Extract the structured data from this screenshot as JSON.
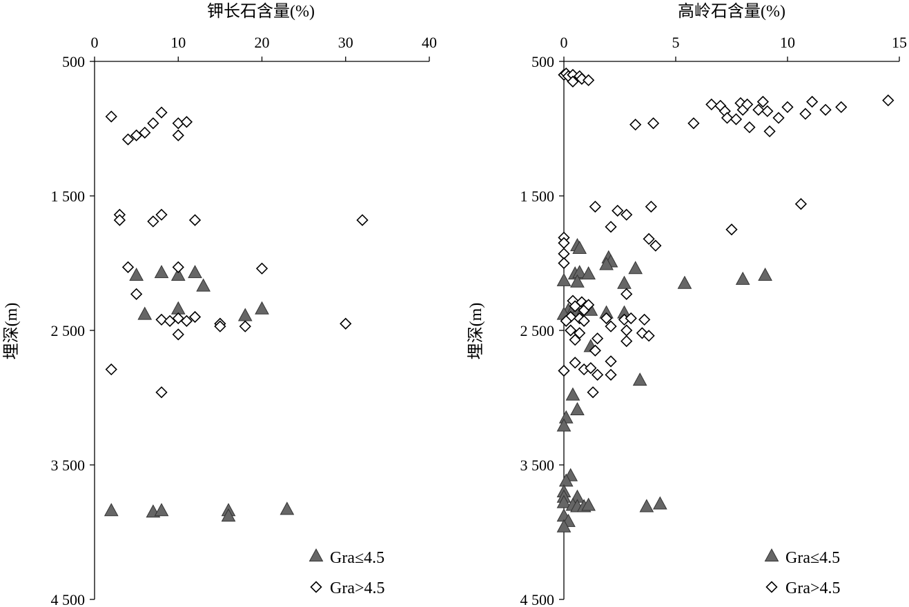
{
  "chart_data": [
    {
      "type": "scatter",
      "title": "",
      "xlabel": "钾长石含量(%)",
      "ylabel": "埋深(m)",
      "xlim": [
        0,
        40
      ],
      "ylim": [
        500,
        4500
      ],
      "y_inverted": true,
      "x_axis_position": "top",
      "xticks": [
        "0",
        "10",
        "20",
        "30",
        "40"
      ],
      "yticks": [
        "500",
        "1 500",
        "2 500",
        "3 500",
        "4 500"
      ],
      "legend": [
        "Gra≤4.5",
        "Gra>4.5"
      ],
      "legend_position": "bottom-right",
      "series": [
        {
          "name": "Gra≤4.5",
          "marker": "triangle",
          "color": "#666666",
          "points": [
            [
              5,
              2090
            ],
            [
              8,
              2070
            ],
            [
              10,
              2090
            ],
            [
              12,
              2070
            ],
            [
              13,
              2170
            ],
            [
              10,
              2340
            ],
            [
              6,
              2380
            ],
            [
              18,
              2390
            ],
            [
              20,
              2340
            ],
            [
              2,
              3840
            ],
            [
              7,
              3850
            ],
            [
              8,
              3840
            ],
            [
              16,
              3840
            ],
            [
              16,
              3880
            ],
            [
              23,
              3830
            ]
          ]
        },
        {
          "name": "Gra>4.5",
          "marker": "diamond",
          "color": "#ffffff",
          "points": [
            [
              2,
              910
            ],
            [
              8,
              880
            ],
            [
              7,
              960
            ],
            [
              10,
              960
            ],
            [
              11,
              950
            ],
            [
              4,
              1080
            ],
            [
              5,
              1050
            ],
            [
              6,
              1030
            ],
            [
              10,
              1050
            ],
            [
              3,
              1640
            ],
            [
              3,
              1680
            ],
            [
              8,
              1640
            ],
            [
              7,
              1690
            ],
            [
              12,
              1680
            ],
            [
              32,
              1680
            ],
            [
              4,
              2030
            ],
            [
              10,
              2030
            ],
            [
              20,
              2040
            ],
            [
              5,
              2230
            ],
            [
              8,
              2420
            ],
            [
              9,
              2430
            ],
            [
              10,
              2410
            ],
            [
              11,
              2430
            ],
            [
              12,
              2400
            ],
            [
              15,
              2450
            ],
            [
              15,
              2470
            ],
            [
              18,
              2470
            ],
            [
              30,
              2450
            ],
            [
              10,
              2530
            ],
            [
              2,
              2790
            ],
            [
              8,
              2960
            ]
          ]
        }
      ]
    },
    {
      "type": "scatter",
      "title": "",
      "xlabel": "高岭石含量(%)",
      "ylabel": "埋深(m)",
      "xlim": [
        0,
        15
      ],
      "ylim": [
        500,
        4500
      ],
      "y_inverted": true,
      "x_axis_position": "top",
      "xticks": [
        "0",
        "5",
        "10",
        "15"
      ],
      "yticks": [
        "500",
        "1 500",
        "2 500",
        "3 500",
        "4 500"
      ],
      "legend": [
        "Gra≤4.5",
        "Gra>4.5"
      ],
      "legend_position": "bottom-right",
      "series": [
        {
          "name": "Gra≤4.5",
          "marker": "triangle",
          "color": "#666666",
          "points": [
            [
              0.6,
              1870
            ],
            [
              0.7,
              1890
            ],
            [
              2.0,
              1960
            ],
            [
              2.1,
              1990
            ],
            [
              1.9,
              2010
            ],
            [
              3.2,
              2040
            ],
            [
              0.5,
              2080
            ],
            [
              0.7,
              2070
            ],
            [
              1.1,
              2080
            ],
            [
              0.0,
              2130
            ],
            [
              0.6,
              2140
            ],
            [
              2.7,
              2150
            ],
            [
              5.4,
              2150
            ],
            [
              8.0,
              2120
            ],
            [
              9.0,
              2090
            ],
            [
              0.2,
              2350
            ],
            [
              0.4,
              2350
            ],
            [
              0.6,
              2360
            ],
            [
              0.9,
              2340
            ],
            [
              1.2,
              2350
            ],
            [
              1.9,
              2370
            ],
            [
              2.7,
              2370
            ],
            [
              0.0,
              2380
            ],
            [
              1.2,
              2620
            ],
            [
              3.4,
              2870
            ],
            [
              0.4,
              2980
            ],
            [
              0.6,
              3090
            ],
            [
              0.1,
              3150
            ],
            [
              0.0,
              3210
            ],
            [
              0.3,
              3580
            ],
            [
              0.1,
              3620
            ],
            [
              0.0,
              3700
            ],
            [
              0.0,
              3740
            ],
            [
              0.6,
              3740
            ],
            [
              0.0,
              3780
            ],
            [
              0.4,
              3800
            ],
            [
              0.6,
              3810
            ],
            [
              0.9,
              3810
            ],
            [
              1.1,
              3800
            ],
            [
              3.7,
              3810
            ],
            [
              4.3,
              3790
            ],
            [
              0.0,
              3880
            ],
            [
              0.2,
              3920
            ],
            [
              0.0,
              3960
            ]
          ]
        },
        {
          "name": "Gra>4.5",
          "marker": "diamond",
          "color": "#ffffff",
          "points": [
            [
              0.0,
              600
            ],
            [
              0.1,
              590
            ],
            [
              0.2,
              610
            ],
            [
              0.4,
              600
            ],
            [
              0.7,
              610
            ],
            [
              0.4,
              650
            ],
            [
              0.8,
              630
            ],
            [
              1.1,
              640
            ],
            [
              6.6,
              820
            ],
            [
              7.0,
              830
            ],
            [
              7.2,
              870
            ],
            [
              7.3,
              920
            ],
            [
              7.7,
              930
            ],
            [
              7.9,
              810
            ],
            [
              8.0,
              860
            ],
            [
              8.2,
              820
            ],
            [
              8.7,
              860
            ],
            [
              8.9,
              800
            ],
            [
              9.1,
              870
            ],
            [
              9.6,
              920
            ],
            [
              10.0,
              840
            ],
            [
              10.8,
              890
            ],
            [
              11.1,
              800
            ],
            [
              11.7,
              860
            ],
            [
              12.4,
              840
            ],
            [
              14.5,
              790
            ],
            [
              8.3,
              990
            ],
            [
              9.2,
              1020
            ],
            [
              3.2,
              970
            ],
            [
              4.0,
              960
            ],
            [
              5.8,
              960
            ],
            [
              1.4,
              1580
            ],
            [
              2.4,
              1610
            ],
            [
              2.8,
              1640
            ],
            [
              3.9,
              1580
            ],
            [
              10.6,
              1560
            ],
            [
              2.1,
              1730
            ],
            [
              7.5,
              1750
            ],
            [
              0.0,
              1810
            ],
            [
              0.0,
              1850
            ],
            [
              3.8,
              1820
            ],
            [
              4.1,
              1870
            ],
            [
              0.0,
              1930
            ],
            [
              0.0,
              2000
            ],
            [
              2.8,
              2230
            ],
            [
              0.4,
              2280
            ],
            [
              0.8,
              2290
            ],
            [
              0.5,
              2320
            ],
            [
              1.0,
              2320
            ],
            [
              0.9,
              2350
            ],
            [
              1.1,
              2310
            ],
            [
              0.3,
              2400
            ],
            [
              0.1,
              2430
            ],
            [
              0.7,
              2410
            ],
            [
              0.9,
              2430
            ],
            [
              1.9,
              2410
            ],
            [
              2.7,
              2420
            ],
            [
              3.0,
              2410
            ],
            [
              3.6,
              2420
            ],
            [
              0.3,
              2500
            ],
            [
              0.7,
              2520
            ],
            [
              2.1,
              2470
            ],
            [
              2.8,
              2500
            ],
            [
              3.5,
              2520
            ],
            [
              0.5,
              2570
            ],
            [
              1.5,
              2560
            ],
            [
              2.8,
              2580
            ],
            [
              3.8,
              2540
            ],
            [
              1.4,
              2650
            ],
            [
              0.5,
              2740
            ],
            [
              2.1,
              2730
            ],
            [
              0.0,
              2800
            ],
            [
              0.9,
              2790
            ],
            [
              1.2,
              2780
            ],
            [
              1.5,
              2830
            ],
            [
              2.1,
              2830
            ],
            [
              1.3,
              2960
            ]
          ]
        }
      ]
    }
  ]
}
